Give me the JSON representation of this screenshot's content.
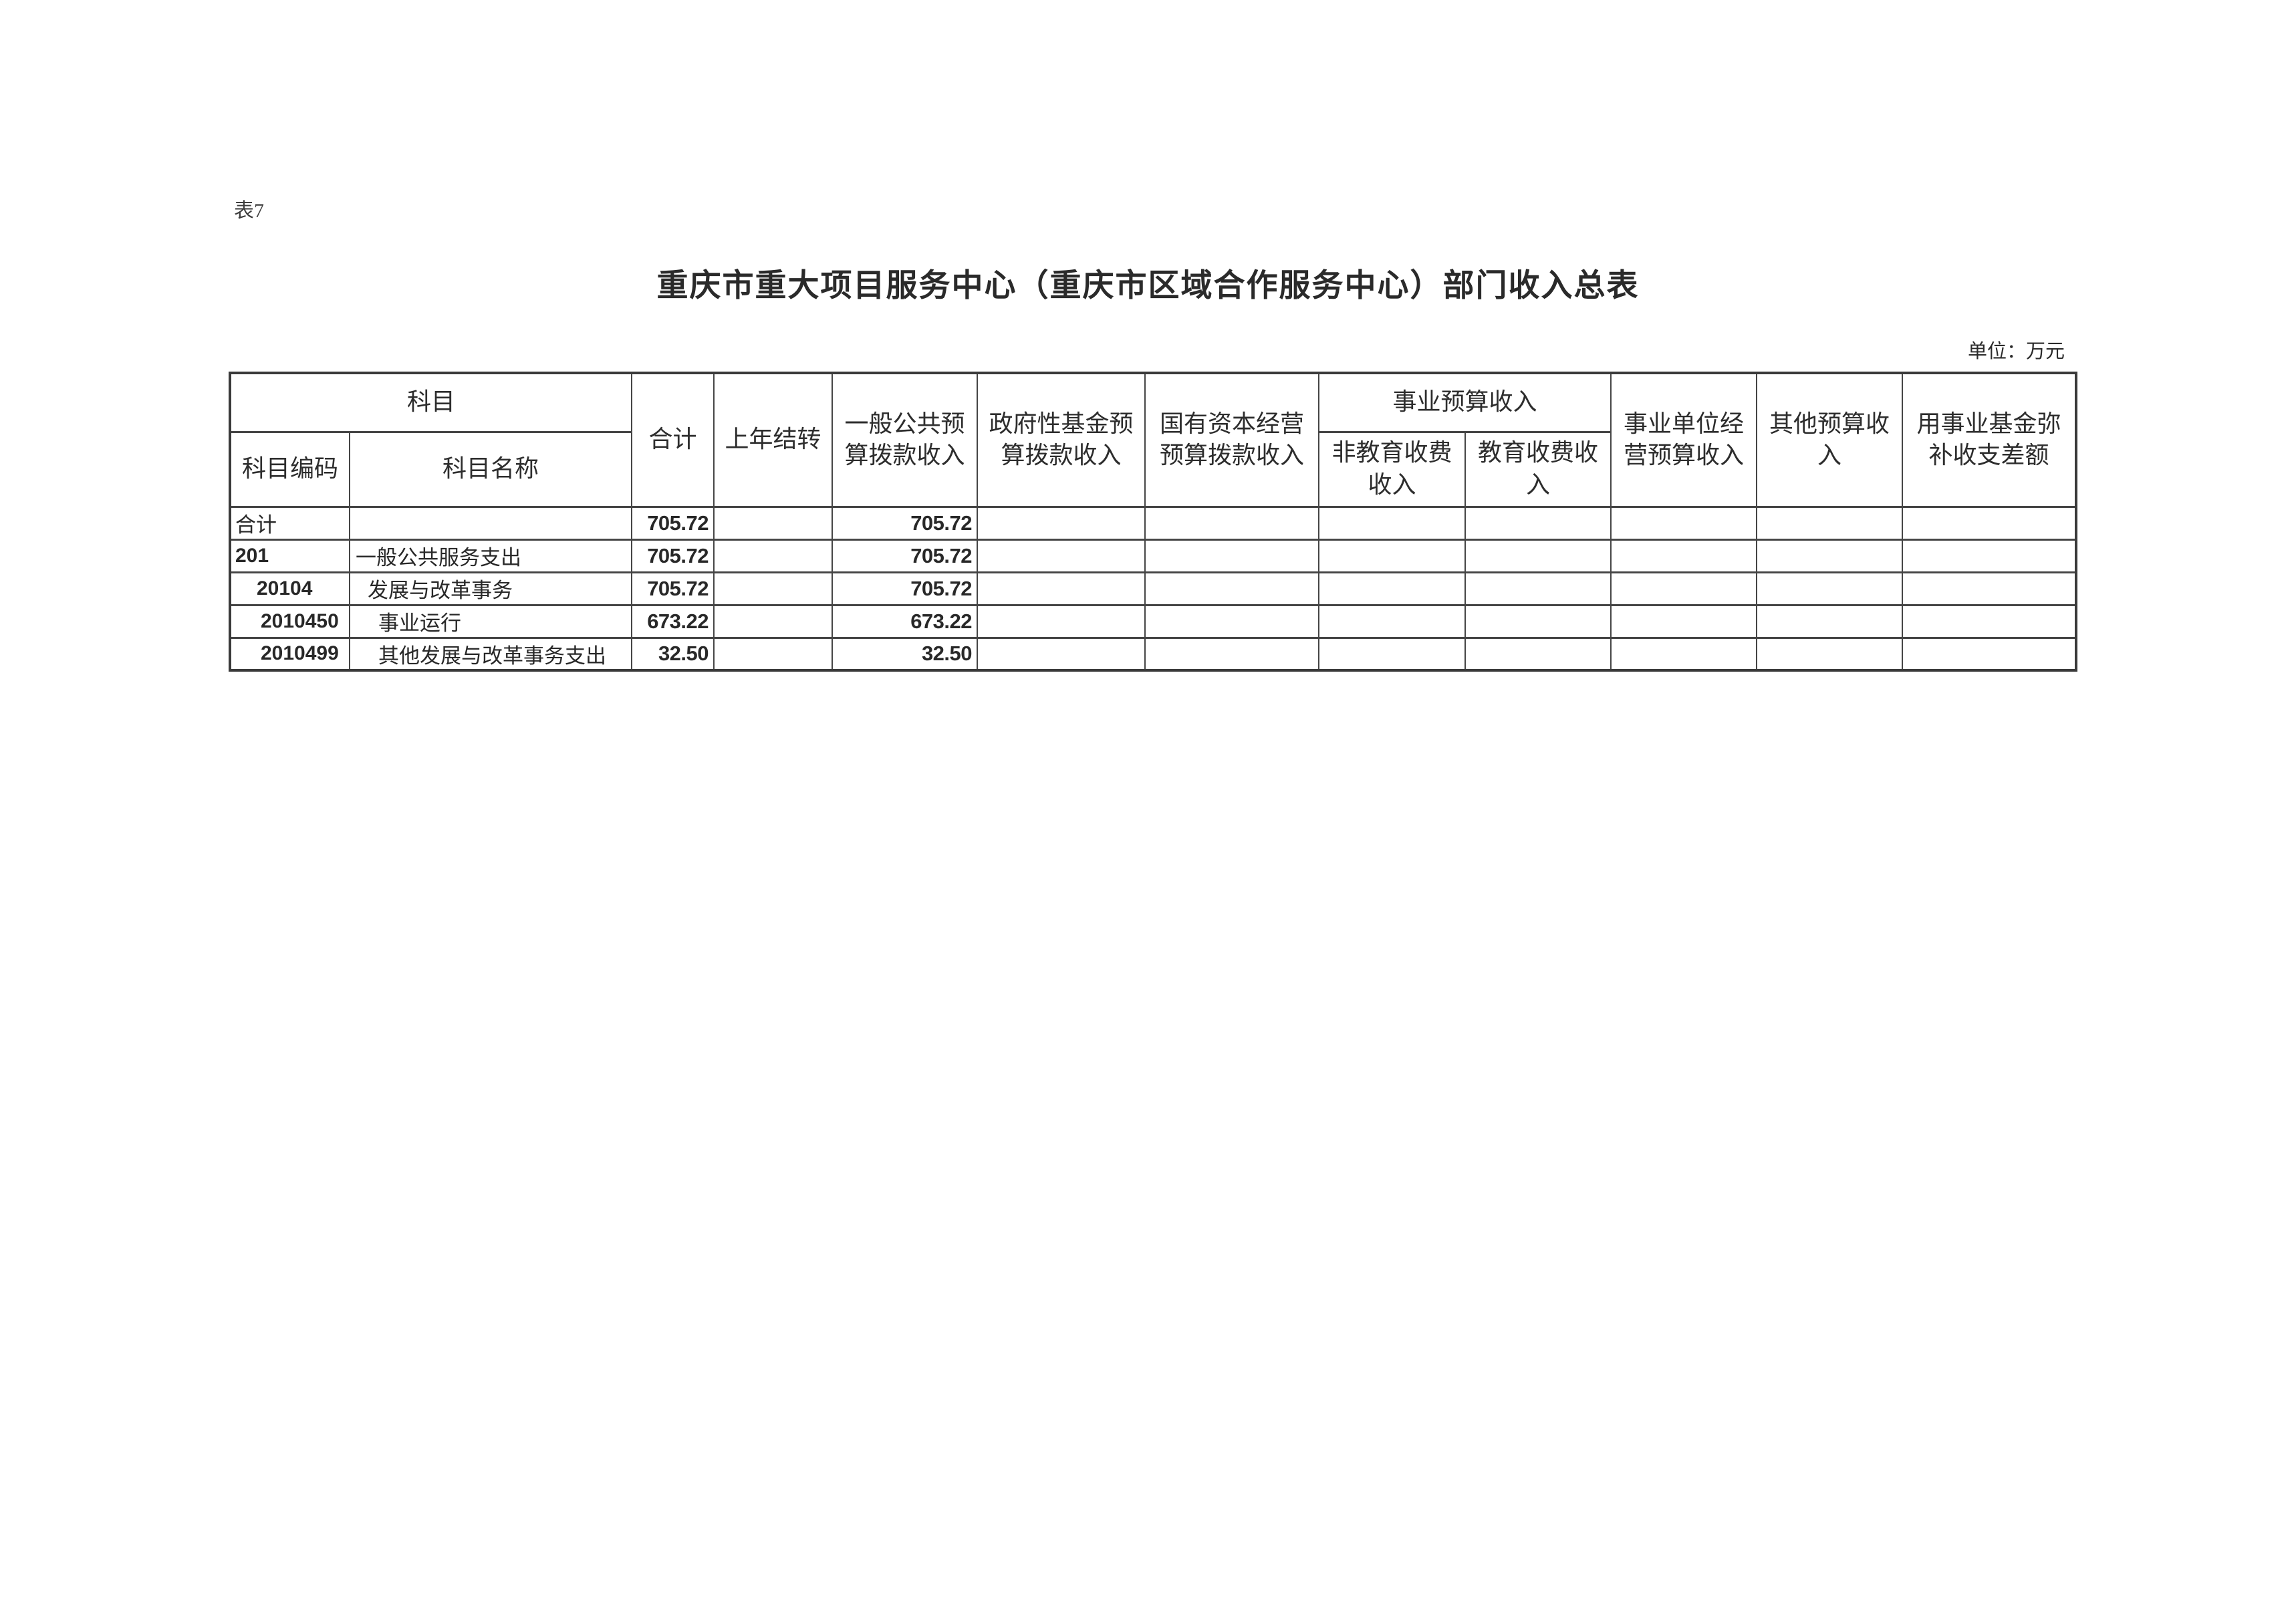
{
  "page": {
    "tag": "表7",
    "title": "重庆市重大项目服务中心（重庆市区域合作服务中心）部门收入总表",
    "unit_note": "单位：万元"
  },
  "table": {
    "headers": {
      "subject": "科目",
      "subject_code": "科目编码",
      "subject_name": "科目名称",
      "total": "合计",
      "prev_year_carryover": "上年结转",
      "general_public_budget_income": "一般公共预\n算拨款收入",
      "gov_fund_budget_income": "政府性基金预\n算拨款收入",
      "state_capital_budget_income": "国有资本经营\n预算拨款收入",
      "institution_budget_income": "事业预算收入",
      "non_education_fee_income": "非教育收费\n收入",
      "education_fee_income": "教育收费收\n入",
      "institution_operating_income": "事业单位经\n营预算收入",
      "other_budget_income": "其他预算收\n入",
      "fund_balance_subsidy": "用事业基金弥\n补收支差额"
    },
    "rows": [
      {
        "cells": [
          "合计",
          "",
          "705.72",
          "",
          "705.72",
          "",
          "",
          "",
          "",
          "",
          "",
          ""
        ],
        "code_pad": 6,
        "name_pad": 6
      },
      {
        "cells": [
          "201",
          "一般公共服务支出",
          "705.72",
          "",
          "705.72",
          "",
          "",
          "",
          "",
          "",
          "",
          ""
        ],
        "code_pad": 6,
        "name_pad": 8
      },
      {
        "cells": [
          "20104",
          "发展与改革事务",
          "705.72",
          "",
          "705.72",
          "",
          "",
          "",
          "",
          "",
          "",
          ""
        ],
        "code_pad": 38,
        "name_pad": 26
      },
      {
        "cells": [
          "2010450",
          "事业运行",
          "673.22",
          "",
          "673.22",
          "",
          "",
          "",
          "",
          "",
          "",
          ""
        ],
        "code_pad": 44,
        "name_pad": 42
      },
      {
        "cells": [
          "2010499",
          "其他发展与改革事务支出",
          "32.50",
          "",
          "32.50",
          "",
          "",
          "",
          "",
          "",
          "",
          ""
        ],
        "code_pad": 44,
        "name_pad": 42
      }
    ]
  }
}
